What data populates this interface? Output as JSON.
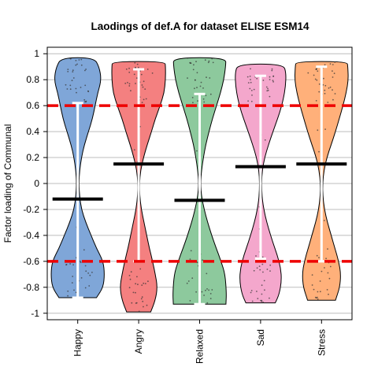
{
  "chart_data": {
    "type": "violin",
    "title": "Laodings of def.A for dataset ELISE ESM14",
    "xlabel": "",
    "ylabel": "Factor loading of Communal",
    "ylim": [
      -1.05,
      1.05
    ],
    "yticks": [
      -1,
      -0.8,
      -0.6,
      -0.4,
      -0.2,
      0,
      0.2,
      0.4,
      0.6,
      0.8,
      1
    ],
    "ytick_labels": [
      "-1",
      "-0.8",
      "-0.6",
      "-0.4",
      "-0.2",
      "0",
      "0.2",
      "0.4",
      "0.6",
      "0.8",
      "1"
    ],
    "grid": true,
    "reference_lines": [
      0.6,
      -0.6
    ],
    "reference_line_color": "#ee0000",
    "categories": [
      "Happy",
      "Angry",
      "Relaxed",
      "Sad",
      "Stress"
    ],
    "series": [
      {
        "category": "Happy",
        "color": "#7fa6d8",
        "min": -0.88,
        "max": 0.97,
        "mean": -0.12,
        "whisker_low": -0.88,
        "whisker_high": 0.62,
        "density": [
          [
            -0.88,
            0.7
          ],
          [
            -0.8,
            0.95
          ],
          [
            -0.7,
            1.0
          ],
          [
            -0.6,
            0.95
          ],
          [
            -0.5,
            0.7
          ],
          [
            -0.4,
            0.5
          ],
          [
            -0.3,
            0.3
          ],
          [
            -0.2,
            0.14
          ],
          [
            -0.1,
            0.07
          ],
          [
            0,
            0.04
          ],
          [
            0.1,
            0.07
          ],
          [
            0.2,
            0.14
          ],
          [
            0.3,
            0.25
          ],
          [
            0.4,
            0.4
          ],
          [
            0.5,
            0.55
          ],
          [
            0.6,
            0.65
          ],
          [
            0.7,
            0.75
          ],
          [
            0.8,
            0.88
          ],
          [
            0.9,
            0.8
          ],
          [
            0.97,
            0.6
          ]
        ]
      },
      {
        "category": "Angry",
        "color": "#f48080",
        "min": -0.99,
        "max": 0.94,
        "mean": 0.15,
        "whisker_low": -0.6,
        "whisker_high": 0.88,
        "density": [
          [
            -0.99,
            0.45
          ],
          [
            -0.9,
            0.62
          ],
          [
            -0.8,
            0.7
          ],
          [
            -0.7,
            0.62
          ],
          [
            -0.6,
            0.52
          ],
          [
            -0.5,
            0.4
          ],
          [
            -0.4,
            0.3
          ],
          [
            -0.3,
            0.2
          ],
          [
            -0.2,
            0.1
          ],
          [
            -0.1,
            0.04
          ],
          [
            0,
            0.03
          ],
          [
            0.1,
            0.07
          ],
          [
            0.2,
            0.18
          ],
          [
            0.3,
            0.32
          ],
          [
            0.4,
            0.48
          ],
          [
            0.5,
            0.62
          ],
          [
            0.6,
            0.8
          ],
          [
            0.7,
            0.95
          ],
          [
            0.8,
            1.0
          ],
          [
            0.9,
            1.0
          ],
          [
            0.94,
            0.98
          ]
        ]
      },
      {
        "category": "Relaxed",
        "color": "#8dc99d",
        "min": -0.93,
        "max": 0.97,
        "mean": -0.13,
        "whisker_low": -0.93,
        "whisker_high": 0.69,
        "density": [
          [
            -0.93,
            0.98
          ],
          [
            -0.85,
            1.0
          ],
          [
            -0.7,
            0.95
          ],
          [
            -0.6,
            0.8
          ],
          [
            -0.5,
            0.62
          ],
          [
            -0.4,
            0.45
          ],
          [
            -0.3,
            0.3
          ],
          [
            -0.2,
            0.17
          ],
          [
            -0.1,
            0.07
          ],
          [
            0,
            0.03
          ],
          [
            0.1,
            0.07
          ],
          [
            0.2,
            0.14
          ],
          [
            0.3,
            0.23
          ],
          [
            0.4,
            0.35
          ],
          [
            0.5,
            0.48
          ],
          [
            0.6,
            0.63
          ],
          [
            0.7,
            0.78
          ],
          [
            0.8,
            0.9
          ],
          [
            0.9,
            0.97
          ],
          [
            0.97,
            0.98
          ]
        ]
      },
      {
        "category": "Sad",
        "color": "#f4a7cc",
        "min": -0.92,
        "max": 0.92,
        "mean": 0.13,
        "whisker_low": -0.58,
        "whisker_high": 0.83,
        "density": [
          [
            -0.92,
            0.55
          ],
          [
            -0.85,
            0.7
          ],
          [
            -0.75,
            0.78
          ],
          [
            -0.65,
            0.75
          ],
          [
            -0.55,
            0.62
          ],
          [
            -0.45,
            0.45
          ],
          [
            -0.35,
            0.3
          ],
          [
            -0.25,
            0.17
          ],
          [
            -0.15,
            0.08
          ],
          [
            -0.05,
            0.04
          ],
          [
            0.05,
            0.04
          ],
          [
            0.15,
            0.1
          ],
          [
            0.25,
            0.22
          ],
          [
            0.35,
            0.38
          ],
          [
            0.45,
            0.55
          ],
          [
            0.55,
            0.72
          ],
          [
            0.65,
            0.85
          ],
          [
            0.75,
            0.93
          ],
          [
            0.85,
            0.95
          ],
          [
            0.92,
            0.85
          ]
        ]
      },
      {
        "category": "Stress",
        "color": "#ffb07a",
        "min": -0.9,
        "max": 0.94,
        "mean": 0.15,
        "whisker_low": -0.6,
        "whisker_high": 0.9,
        "density": [
          [
            -0.9,
            0.52
          ],
          [
            -0.8,
            0.68
          ],
          [
            -0.7,
            0.72
          ],
          [
            -0.6,
            0.64
          ],
          [
            -0.5,
            0.5
          ],
          [
            -0.4,
            0.36
          ],
          [
            -0.3,
            0.22
          ],
          [
            -0.2,
            0.11
          ],
          [
            -0.1,
            0.05
          ],
          [
            0,
            0.04
          ],
          [
            0.1,
            0.09
          ],
          [
            0.2,
            0.2
          ],
          [
            0.3,
            0.36
          ],
          [
            0.4,
            0.52
          ],
          [
            0.5,
            0.66
          ],
          [
            0.6,
            0.8
          ],
          [
            0.7,
            0.92
          ],
          [
            0.8,
            1.0
          ],
          [
            0.9,
            0.98
          ],
          [
            0.94,
            0.95
          ]
        ]
      }
    ]
  }
}
